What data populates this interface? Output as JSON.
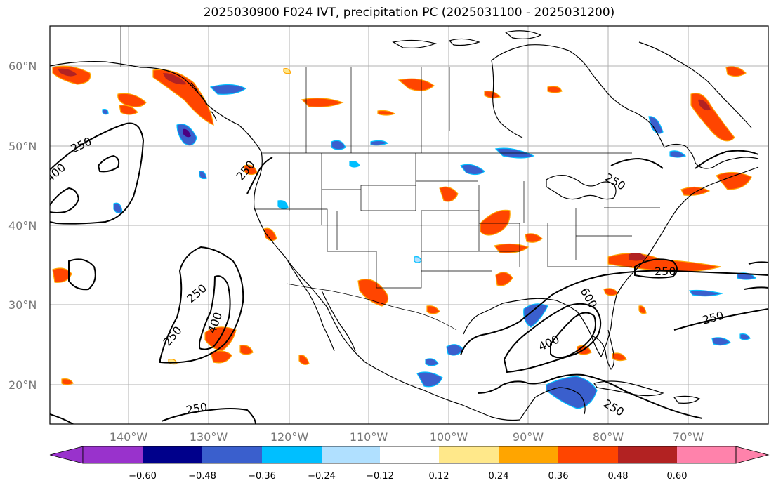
{
  "title": "2025030900 F024 IVT, precipitation PC (2025031100 - 2025031200)",
  "map": {
    "lon_labels": [
      "140°W",
      "130°W",
      "120°W",
      "110°W",
      "100°W",
      "90°W",
      "80°W",
      "70°W"
    ],
    "lat_labels": [
      "60°N",
      "50°N",
      "40°N",
      "30°N",
      "20°N"
    ],
    "ivt_contour_levels": [
      "250",
      "400",
      "600"
    ]
  },
  "colorbar": {
    "ticks": [
      "−0.60",
      "−0.48",
      "−0.36",
      "−0.24",
      "−0.12",
      "0.12",
      "0.24",
      "0.36",
      "0.48",
      "0.60"
    ],
    "colors": [
      "#9932cc",
      "#00008b",
      "#3a5fcd",
      "#00bfff",
      "#b0e0ff",
      "#ffffff",
      "#ffe88a",
      "#ffa500",
      "#ff4500",
      "#b22222",
      "#ff82ab",
      "#ff82ab"
    ]
  },
  "feature_colors": {
    "neg_strong": "#3a5fcd",
    "neg_mid": "#00bfff",
    "neg_light": "#b0e0ff",
    "neg_extreme": "#4b0082",
    "pos_light": "#ffe88a",
    "pos_mid": "#ffa500",
    "pos_strong": "#ff4500",
    "pos_dark": "#b22222"
  }
}
